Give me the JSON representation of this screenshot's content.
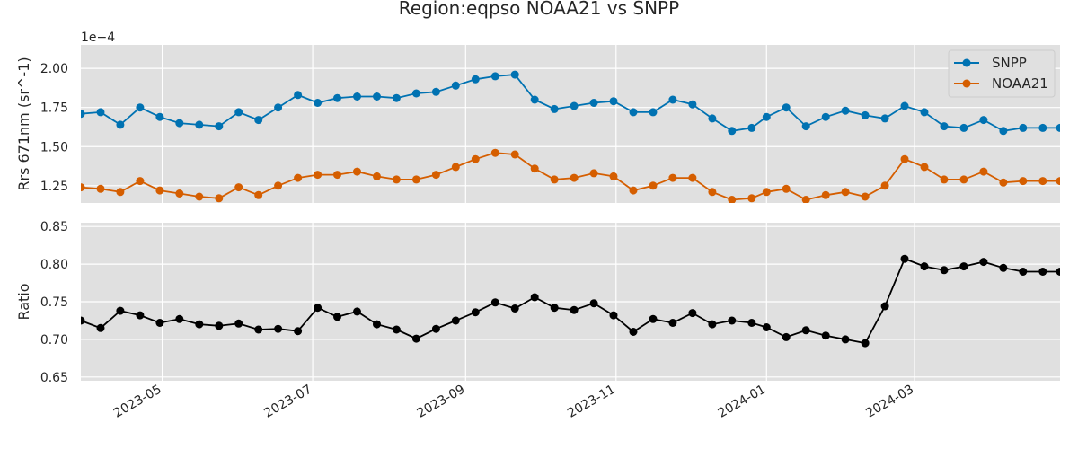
{
  "chart_data": {
    "type": "line",
    "title": "Region:eqpso NOAA21 vs SNPP",
    "xlim": [
      "2023-03-29",
      "2024-04-29"
    ],
    "x_ticks": [
      "2023-05-01",
      "2023-07-01",
      "2023-09-01",
      "2023-11-01",
      "2024-01-01",
      "2024-03-01"
    ],
    "x_tick_labels": [
      "2023-05",
      "2023-07",
      "2023-09",
      "2023-11",
      "2024-01",
      "2024-03"
    ],
    "x": [
      "2023-03-29",
      "2023-04-06",
      "2023-04-14",
      "2023-04-22",
      "2023-04-30",
      "2023-05-08",
      "2023-05-16",
      "2023-05-24",
      "2023-06-01",
      "2023-06-09",
      "2023-06-17",
      "2023-06-25",
      "2023-07-03",
      "2023-07-11",
      "2023-07-19",
      "2023-07-27",
      "2023-08-04",
      "2023-08-12",
      "2023-08-20",
      "2023-08-28",
      "2023-09-05",
      "2023-09-13",
      "2023-09-21",
      "2023-09-29",
      "2023-10-07",
      "2023-10-15",
      "2023-10-23",
      "2023-10-31",
      "2023-11-08",
      "2023-11-16",
      "2023-11-24",
      "2023-12-02",
      "2023-12-10",
      "2023-12-18",
      "2023-12-26",
      "2024-01-01",
      "2024-01-09",
      "2024-01-17",
      "2024-01-25",
      "2024-02-02",
      "2024-02-10",
      "2024-02-18",
      "2024-02-26",
      "2024-03-05",
      "2024-03-13",
      "2024-03-21",
      "2024-03-29",
      "2024-04-06",
      "2024-04-14",
      "2024-04-22",
      "2024-04-29"
    ],
    "top_panel": {
      "ylabel": "Rrs 671nm (sr^-1)",
      "scale_label": "1e−4",
      "ylim": [
        1.14,
        2.15
      ],
      "y_ticks": [
        1.25,
        1.5,
        1.75,
        2.0
      ],
      "y_tick_labels": [
        "1.25",
        "1.50",
        "1.75",
        "2.00"
      ],
      "legend_position": "top-right",
      "series": [
        {
          "name": "SNPP",
          "color": "#0072b2",
          "values": [
            1.71,
            1.72,
            1.64,
            1.75,
            1.69,
            1.65,
            1.64,
            1.63,
            1.72,
            1.67,
            1.75,
            1.83,
            1.78,
            1.81,
            1.82,
            1.82,
            1.81,
            1.84,
            1.85,
            1.89,
            1.93,
            1.95,
            1.96,
            1.8,
            1.74,
            1.76,
            1.78,
            1.79,
            1.72,
            1.72,
            1.8,
            1.77,
            1.68,
            1.6,
            1.62,
            1.69,
            1.75,
            1.63,
            1.69,
            1.73,
            1.7,
            1.68,
            1.76,
            1.72,
            1.63,
            1.62,
            1.67,
            1.6,
            1.62,
            1.62,
            1.62
          ]
        },
        {
          "name": "NOAA21",
          "color": "#d55e00",
          "values": [
            1.24,
            1.23,
            1.21,
            1.28,
            1.22,
            1.2,
            1.18,
            1.17,
            1.24,
            1.19,
            1.25,
            1.3,
            1.32,
            1.32,
            1.34,
            1.31,
            1.29,
            1.29,
            1.32,
            1.37,
            1.42,
            1.46,
            1.45,
            1.36,
            1.29,
            1.3,
            1.33,
            1.31,
            1.22,
            1.25,
            1.3,
            1.3,
            1.21,
            1.16,
            1.17,
            1.21,
            1.23,
            1.16,
            1.19,
            1.21,
            1.18,
            1.25,
            1.42,
            1.37,
            1.29,
            1.29,
            1.34,
            1.27,
            1.28,
            1.28,
            1.28
          ]
        }
      ]
    },
    "bottom_panel": {
      "ylabel": "Ratio",
      "ylim": [
        0.645,
        0.855
      ],
      "y_ticks": [
        0.65,
        0.7,
        0.75,
        0.8,
        0.85
      ],
      "y_tick_labels": [
        "0.65",
        "0.70",
        "0.75",
        "0.80",
        "0.85"
      ],
      "series": [
        {
          "name": "",
          "color": "#000000",
          "values": [
            0.725,
            0.715,
            0.738,
            0.732,
            0.722,
            0.727,
            0.72,
            0.718,
            0.721,
            0.713,
            0.714,
            0.711,
            0.742,
            0.73,
            0.737,
            0.72,
            0.713,
            0.701,
            0.714,
            0.725,
            0.736,
            0.749,
            0.741,
            0.756,
            0.742,
            0.739,
            0.748,
            0.732,
            0.71,
            0.727,
            0.722,
            0.735,
            0.72,
            0.725,
            0.722,
            0.716,
            0.703,
            0.712,
            0.705,
            0.7,
            0.695,
            0.744,
            0.807,
            0.797,
            0.792,
            0.797,
            0.803,
            0.795,
            0.79,
            0.79,
            0.79
          ]
        }
      ]
    },
    "grid": true
  }
}
